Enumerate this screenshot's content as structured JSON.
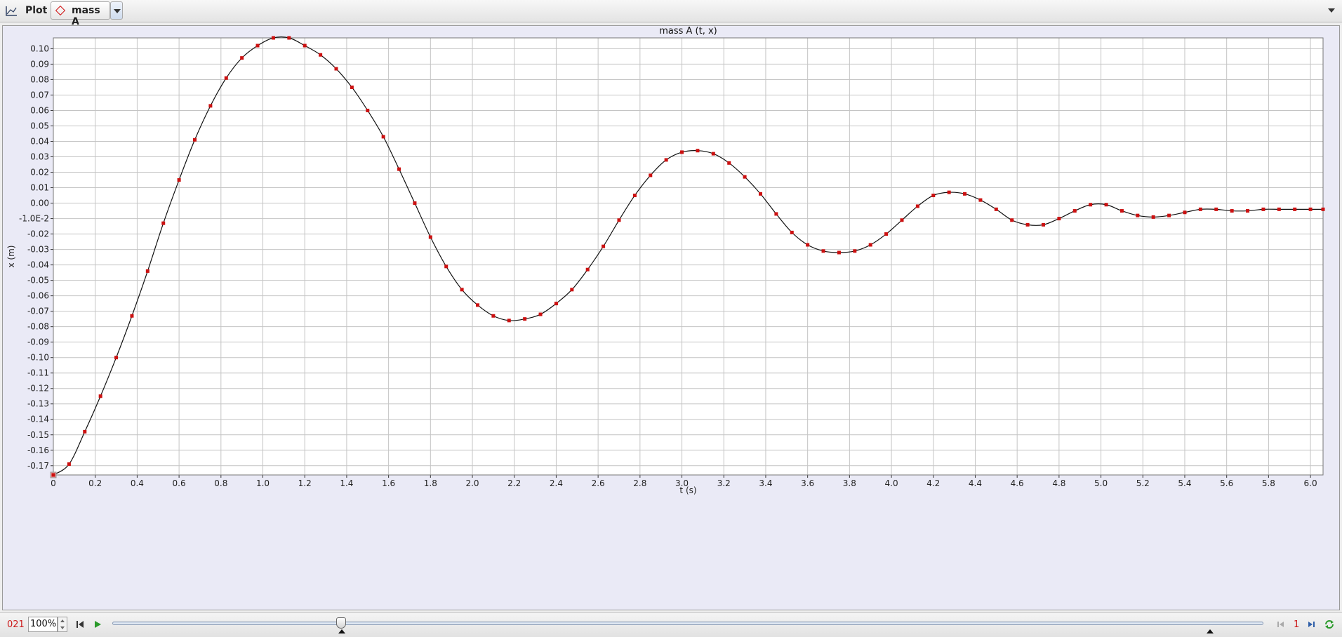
{
  "toolbar": {
    "title": "Plot",
    "tab_label": "mass A"
  },
  "colors": {
    "marker": "#cc1111",
    "line": "#111111",
    "grid": "#c4c4c4",
    "plot_bg": "#ffffff",
    "panel_bg": "#eaeaf6",
    "frame_number": "#cc1b1b"
  },
  "icons": {
    "toolbar": "plot-icon",
    "tab": "diamond-icon",
    "dropdown": "chevron-down-icon",
    "step_back": "step-back-icon",
    "play": "play-icon",
    "loop": "loop-icon"
  },
  "player": {
    "frame": "021",
    "zoom": "100%",
    "step_size": "1",
    "slider_position": 0.2
  },
  "chart_data": {
    "type": "line",
    "title": "mass A (t, x)",
    "xlabel": "t (s)",
    "ylabel": "x (m)",
    "xlim": [
      0,
      6.06
    ],
    "ylim": [
      -0.176,
      0.107
    ],
    "grid": true,
    "markers": "red squares",
    "xticks": [
      "0",
      "0.2",
      "0.4",
      "0.6",
      "0.8",
      "1.0",
      "1.2",
      "1.4",
      "1.6",
      "1.8",
      "2.0",
      "2.2",
      "2.4",
      "2.6",
      "2.8",
      "3.0",
      "3.2",
      "3.4",
      "3.6",
      "3.8",
      "4.0",
      "4.2",
      "4.4",
      "4.6",
      "4.8",
      "5.0",
      "5.2",
      "5.4",
      "5.6",
      "5.8",
      "6.0"
    ],
    "yticks": [
      {
        "v": 0.1,
        "label": "0.10"
      },
      {
        "v": 0.09,
        "label": "0.09"
      },
      {
        "v": 0.08,
        "label": "0.08"
      },
      {
        "v": 0.07,
        "label": "0.07"
      },
      {
        "v": 0.06,
        "label": "0.06"
      },
      {
        "v": 0.05,
        "label": "0.05"
      },
      {
        "v": 0.04,
        "label": "0.04"
      },
      {
        "v": 0.03,
        "label": "0.03"
      },
      {
        "v": 0.02,
        "label": "0.02"
      },
      {
        "v": 0.01,
        "label": "0.01"
      },
      {
        "v": 0.0,
        "label": "0.00"
      },
      {
        "v": -0.01,
        "label": "-1.0E-2"
      },
      {
        "v": -0.02,
        "label": "-0.02"
      },
      {
        "v": -0.03,
        "label": "-0.03"
      },
      {
        "v": -0.04,
        "label": "-0.04"
      },
      {
        "v": -0.05,
        "label": "-0.05"
      },
      {
        "v": -0.06,
        "label": "-0.06"
      },
      {
        "v": -0.07,
        "label": "-0.07"
      },
      {
        "v": -0.08,
        "label": "-0.08"
      },
      {
        "v": -0.09,
        "label": "-0.09"
      },
      {
        "v": -0.1,
        "label": "-0.10"
      },
      {
        "v": -0.11,
        "label": "-0.11"
      },
      {
        "v": -0.12,
        "label": "-0.12"
      },
      {
        "v": -0.13,
        "label": "-0.13"
      },
      {
        "v": -0.14,
        "label": "-0.14"
      },
      {
        "v": -0.15,
        "label": "-0.15"
      },
      {
        "v": -0.16,
        "label": "-0.16"
      },
      {
        "v": -0.17,
        "label": "-0.17"
      }
    ],
    "series": [
      {
        "x": [
          0,
          0.075,
          0.15,
          0.225,
          0.3,
          0.375,
          0.45,
          0.525,
          0.6,
          0.675,
          0.75,
          0.825,
          0.9,
          0.975,
          1.05,
          1.125,
          1.2,
          1.275,
          1.35,
          1.425,
          1.5,
          1.575,
          1.65,
          1.725,
          1.8,
          1.875,
          1.95,
          2.025,
          2.1,
          2.175,
          2.25,
          2.325,
          2.4,
          2.475,
          2.55,
          2.625,
          2.7,
          2.775,
          2.85,
          2.925,
          3.0,
          3.075,
          3.15,
          3.225,
          3.3,
          3.375,
          3.45,
          3.525,
          3.6,
          3.675,
          3.75,
          3.825,
          3.9,
          3.975,
          4.05,
          4.125,
          4.2,
          4.275,
          4.35,
          4.425,
          4.5,
          4.575,
          4.65,
          4.725,
          4.8,
          4.875,
          4.95,
          5.025,
          5.1,
          5.175,
          5.25,
          5.325,
          5.4,
          5.475,
          5.55,
          5.625,
          5.7,
          5.775,
          5.85,
          5.925,
          6.0,
          6.06
        ],
        "y": [
          -0.176,
          -0.169,
          -0.148,
          -0.125,
          -0.1,
          -0.073,
          -0.044,
          -0.013,
          0.015,
          0.041,
          0.063,
          0.081,
          0.094,
          0.102,
          0.107,
          0.107,
          0.102,
          0.096,
          0.087,
          0.075,
          0.06,
          0.043,
          0.022,
          0.0,
          -0.022,
          -0.041,
          -0.056,
          -0.066,
          -0.073,
          -0.076,
          -0.075,
          -0.072,
          -0.065,
          -0.056,
          -0.043,
          -0.028,
          -0.011,
          0.005,
          0.018,
          0.028,
          0.033,
          0.034,
          0.032,
          0.026,
          0.017,
          0.006,
          -0.007,
          -0.019,
          -0.027,
          -0.031,
          -0.032,
          -0.031,
          -0.027,
          -0.02,
          -0.011,
          -0.002,
          0.005,
          0.007,
          0.006,
          0.002,
          -0.004,
          -0.011,
          -0.014,
          -0.014,
          -0.01,
          -0.005,
          -0.001,
          -0.001,
          -0.005,
          -0.008,
          -0.009,
          -0.008,
          -0.006,
          -0.004,
          -0.004,
          -0.005,
          -0.005,
          -0.004,
          -0.004,
          -0.004,
          -0.004,
          -0.004
        ]
      }
    ]
  }
}
